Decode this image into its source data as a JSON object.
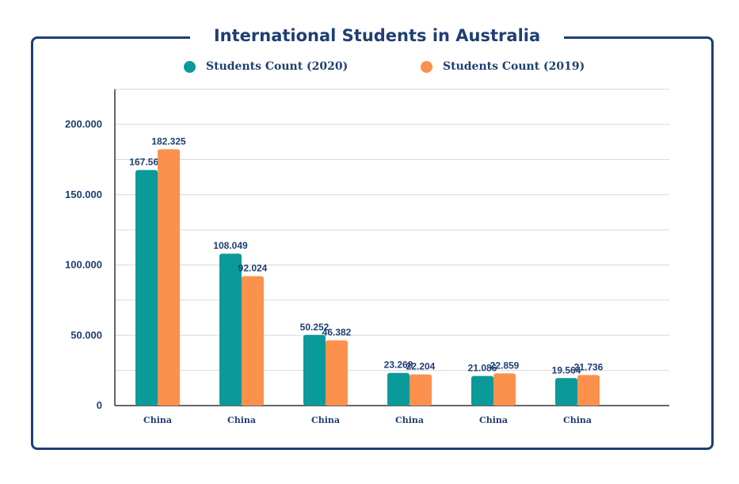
{
  "chart_data": {
    "type": "bar",
    "title": "International Students in Australia",
    "categories": [
      "China",
      "China",
      "China",
      "China",
      "China",
      "China"
    ],
    "series": [
      {
        "name": "Students Count (2020)",
        "color": "#0a9a9a",
        "values": [
          167568,
          108049,
          50252,
          23268,
          21086,
          19564
        ],
        "labels": [
          "167.568",
          "108.049",
          "50.252",
          "23.268",
          "21.086",
          "19.564"
        ]
      },
      {
        "name": "Students Count (2019)",
        "color": "#fb914c",
        "values": [
          182325,
          92024,
          46382,
          22204,
          22859,
          21736
        ],
        "labels": [
          "182.325",
          "92.024",
          "46.382",
          "22.204",
          "22.859",
          "21.736"
        ]
      }
    ],
    "yticks": [
      0,
      50000,
      100000,
      150000,
      200000
    ],
    "ytick_labels": [
      "0",
      "50.000",
      "100.000",
      "150.000",
      "200.000"
    ],
    "ylim": [
      0,
      225000
    ],
    "xlabel": "",
    "ylabel": "",
    "grid": true,
    "legend_position": "top"
  },
  "colors": {
    "frame": "#1f3f73",
    "text": "#1f3f73",
    "grid": "#d9d9d9",
    "axis": "#333333"
  }
}
